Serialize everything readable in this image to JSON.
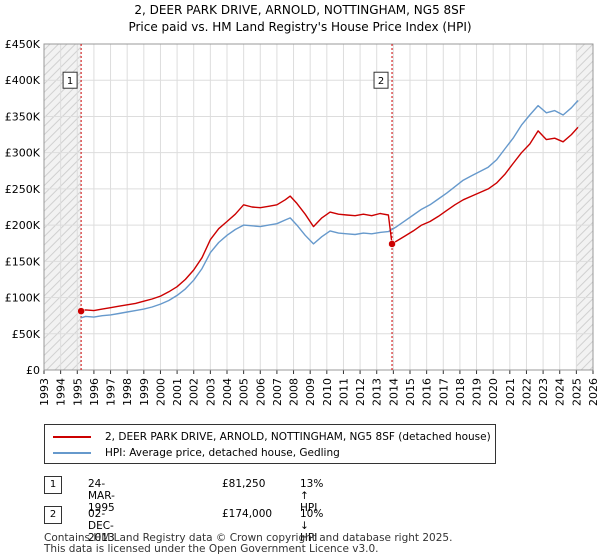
{
  "title_line1": "2, DEER PARK DRIVE, ARNOLD, NOTTINGHAM, NG5 8SF",
  "title_line2": "Price paid vs. HM Land Registry's House Price Index (HPI)",
  "colors": {
    "property": "#cc0000",
    "hpi": "#6699cc",
    "grid": "#dddddd",
    "plot_bg": "#ffffff",
    "vline": "#cc0000"
  },
  "chart_data": {
    "type": "line",
    "xlabel": "",
    "ylabel": "",
    "xlim": [
      1993,
      2026
    ],
    "ylim": [
      0,
      450000
    ],
    "y_ticks": [
      {
        "value": 0,
        "label": "£0"
      },
      {
        "value": 50000,
        "label": "£50K"
      },
      {
        "value": 100000,
        "label": "£100K"
      },
      {
        "value": 150000,
        "label": "£150K"
      },
      {
        "value": 200000,
        "label": "£200K"
      },
      {
        "value": 250000,
        "label": "£250K"
      },
      {
        "value": 300000,
        "label": "£300K"
      },
      {
        "value": 350000,
        "label": "£350K"
      },
      {
        "value": 400000,
        "label": "£400K"
      },
      {
        "value": 450000,
        "label": "£450K"
      }
    ],
    "x_ticks": [
      "1993",
      "1994",
      "1995",
      "1996",
      "1997",
      "1998",
      "1999",
      "2000",
      "2001",
      "2002",
      "2003",
      "2004",
      "2005",
      "2006",
      "2007",
      "2008",
      "2009",
      "2010",
      "2011",
      "2012",
      "2013",
      "2014",
      "2015",
      "2016",
      "2017",
      "2018",
      "2019",
      "2020",
      "2021",
      "2022",
      "2023",
      "2024",
      "2025",
      "2026"
    ],
    "shaded_regions": [
      {
        "from": 1993,
        "to": 1995.23,
        "label": "before data"
      },
      {
        "from": 2025.0,
        "to": 2026,
        "label": "forecast"
      }
    ],
    "series": [
      {
        "name": "2, DEER PARK DRIVE, ARNOLD, NOTTINGHAM, NG5 8SF (detached house)",
        "color": "#cc0000",
        "points": [
          [
            1995.23,
            81250
          ],
          [
            1995.5,
            83000
          ],
          [
            1996.0,
            82000
          ],
          [
            1996.5,
            84000
          ],
          [
            1997.0,
            86000
          ],
          [
            1997.5,
            88000
          ],
          [
            1998.0,
            90000
          ],
          [
            1998.5,
            92000
          ],
          [
            1999.0,
            95000
          ],
          [
            1999.5,
            98000
          ],
          [
            2000.0,
            102000
          ],
          [
            2000.5,
            108000
          ],
          [
            2001.0,
            115000
          ],
          [
            2001.5,
            125000
          ],
          [
            2002.0,
            138000
          ],
          [
            2002.5,
            155000
          ],
          [
            2003.0,
            180000
          ],
          [
            2003.5,
            195000
          ],
          [
            2004.0,
            205000
          ],
          [
            2004.5,
            215000
          ],
          [
            2005.0,
            228000
          ],
          [
            2005.5,
            225000
          ],
          [
            2006.0,
            224000
          ],
          [
            2006.5,
            226000
          ],
          [
            2007.0,
            228000
          ],
          [
            2007.5,
            235000
          ],
          [
            2007.8,
            240000
          ],
          [
            2008.2,
            230000
          ],
          [
            2008.7,
            215000
          ],
          [
            2009.2,
            198000
          ],
          [
            2009.7,
            210000
          ],
          [
            2010.2,
            218000
          ],
          [
            2010.7,
            215000
          ],
          [
            2011.2,
            214000
          ],
          [
            2011.7,
            213000
          ],
          [
            2012.2,
            215000
          ],
          [
            2012.7,
            213000
          ],
          [
            2013.2,
            216000
          ],
          [
            2013.7,
            214000
          ],
          [
            2013.92,
            174000
          ],
          [
            2014.2,
            178000
          ],
          [
            2014.7,
            185000
          ],
          [
            2015.2,
            192000
          ],
          [
            2015.7,
            200000
          ],
          [
            2016.2,
            205000
          ],
          [
            2016.7,
            212000
          ],
          [
            2017.2,
            220000
          ],
          [
            2017.7,
            228000
          ],
          [
            2018.2,
            235000
          ],
          [
            2018.7,
            240000
          ],
          [
            2019.2,
            245000
          ],
          [
            2019.7,
            250000
          ],
          [
            2020.2,
            258000
          ],
          [
            2020.7,
            270000
          ],
          [
            2021.2,
            285000
          ],
          [
            2021.7,
            300000
          ],
          [
            2022.2,
            312000
          ],
          [
            2022.7,
            330000
          ],
          [
            2023.2,
            318000
          ],
          [
            2023.7,
            320000
          ],
          [
            2024.2,
            315000
          ],
          [
            2024.7,
            325000
          ],
          [
            2025.1,
            335000
          ]
        ]
      },
      {
        "name": "HPI: Average price, detached house, Gedling",
        "color": "#6699cc",
        "points": [
          [
            1995.23,
            72000
          ],
          [
            1995.5,
            74000
          ],
          [
            1996.0,
            73000
          ],
          [
            1996.5,
            75000
          ],
          [
            1997.0,
            76000
          ],
          [
            1997.5,
            78000
          ],
          [
            1998.0,
            80000
          ],
          [
            1998.5,
            82000
          ],
          [
            1999.0,
            84000
          ],
          [
            1999.5,
            87000
          ],
          [
            2000.0,
            91000
          ],
          [
            2000.5,
            96000
          ],
          [
            2001.0,
            103000
          ],
          [
            2001.5,
            112000
          ],
          [
            2002.0,
            124000
          ],
          [
            2002.5,
            140000
          ],
          [
            2003.0,
            162000
          ],
          [
            2003.5,
            176000
          ],
          [
            2004.0,
            186000
          ],
          [
            2004.5,
            194000
          ],
          [
            2005.0,
            200000
          ],
          [
            2005.5,
            199000
          ],
          [
            2006.0,
            198000
          ],
          [
            2006.5,
            200000
          ],
          [
            2007.0,
            202000
          ],
          [
            2007.5,
            207000
          ],
          [
            2007.8,
            210000
          ],
          [
            2008.2,
            200000
          ],
          [
            2008.7,
            186000
          ],
          [
            2009.2,
            174000
          ],
          [
            2009.7,
            184000
          ],
          [
            2010.2,
            192000
          ],
          [
            2010.7,
            189000
          ],
          [
            2011.2,
            188000
          ],
          [
            2011.7,
            187000
          ],
          [
            2012.2,
            189000
          ],
          [
            2012.7,
            188000
          ],
          [
            2013.2,
            190000
          ],
          [
            2013.7,
            191000
          ],
          [
            2014.2,
            198000
          ],
          [
            2014.7,
            206000
          ],
          [
            2015.2,
            214000
          ],
          [
            2015.7,
            222000
          ],
          [
            2016.2,
            228000
          ],
          [
            2016.7,
            236000
          ],
          [
            2017.2,
            244000
          ],
          [
            2017.7,
            253000
          ],
          [
            2018.2,
            262000
          ],
          [
            2018.7,
            268000
          ],
          [
            2019.2,
            274000
          ],
          [
            2019.7,
            280000
          ],
          [
            2020.2,
            290000
          ],
          [
            2020.7,
            305000
          ],
          [
            2021.2,
            320000
          ],
          [
            2021.7,
            338000
          ],
          [
            2022.2,
            352000
          ],
          [
            2022.7,
            365000
          ],
          [
            2023.2,
            355000
          ],
          [
            2023.7,
            358000
          ],
          [
            2024.2,
            352000
          ],
          [
            2024.7,
            362000
          ],
          [
            2025.1,
            372000
          ]
        ]
      }
    ],
    "sale_markers": [
      {
        "label": "1",
        "x": 1995.23,
        "price": 81250
      },
      {
        "label": "2",
        "x": 2013.92,
        "price": 174000
      }
    ],
    "legend_position": "below"
  },
  "legend": {
    "property_label": "2, DEER PARK DRIVE, ARNOLD, NOTTINGHAM, NG5 8SF (detached house)",
    "hpi_label": "HPI: Average price, detached house, Gedling"
  },
  "transactions": [
    {
      "marker": "1",
      "date": "24-MAR-1995",
      "price": "£81,250",
      "hpi": "13% ↑ HPI"
    },
    {
      "marker": "2",
      "date": "02-DEC-2013",
      "price": "£174,000",
      "hpi": "10% ↓ HPI"
    }
  ],
  "footer": {
    "line1": "Contains HM Land Registry data © Crown copyright and database right 2025.",
    "line2": "This data is licensed under the Open Government Licence v3.0."
  }
}
